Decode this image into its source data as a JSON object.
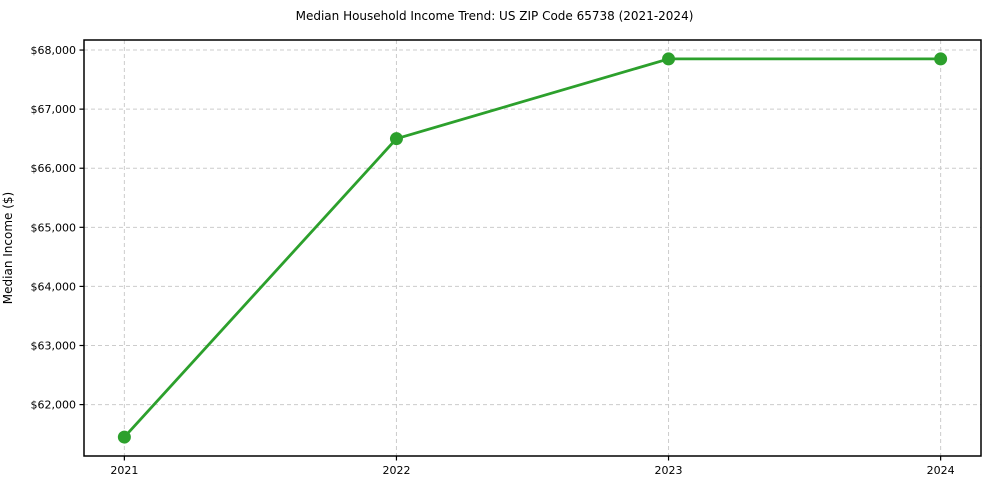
{
  "chart_data": {
    "type": "line",
    "title": "Median Household Income Trend: US ZIP Code 65738 (2021-2024)",
    "xlabel": "",
    "ylabel": "Median Income ($)",
    "categories": [
      "2021",
      "2022",
      "2023",
      "2024"
    ],
    "series": [
      {
        "name": "Median Household Income",
        "values": [
          61450,
          66500,
          67850,
          67850
        ]
      }
    ],
    "yticks": [
      62000,
      63000,
      64000,
      65000,
      66000,
      67000,
      68000
    ],
    "ytick_labels": [
      "$62,000",
      "$63,000",
      "$64,000",
      "$65,000",
      "$66,000",
      "$67,000",
      "$68,000"
    ],
    "ylim": [
      61130,
      68170
    ],
    "grid": true,
    "legend": "none",
    "colors": {
      "line": "#2ca02c",
      "marker": "#2ca02c",
      "grid": "#cccccc",
      "spine": "#000000",
      "background": "#ffffff",
      "text": "#000000"
    }
  }
}
